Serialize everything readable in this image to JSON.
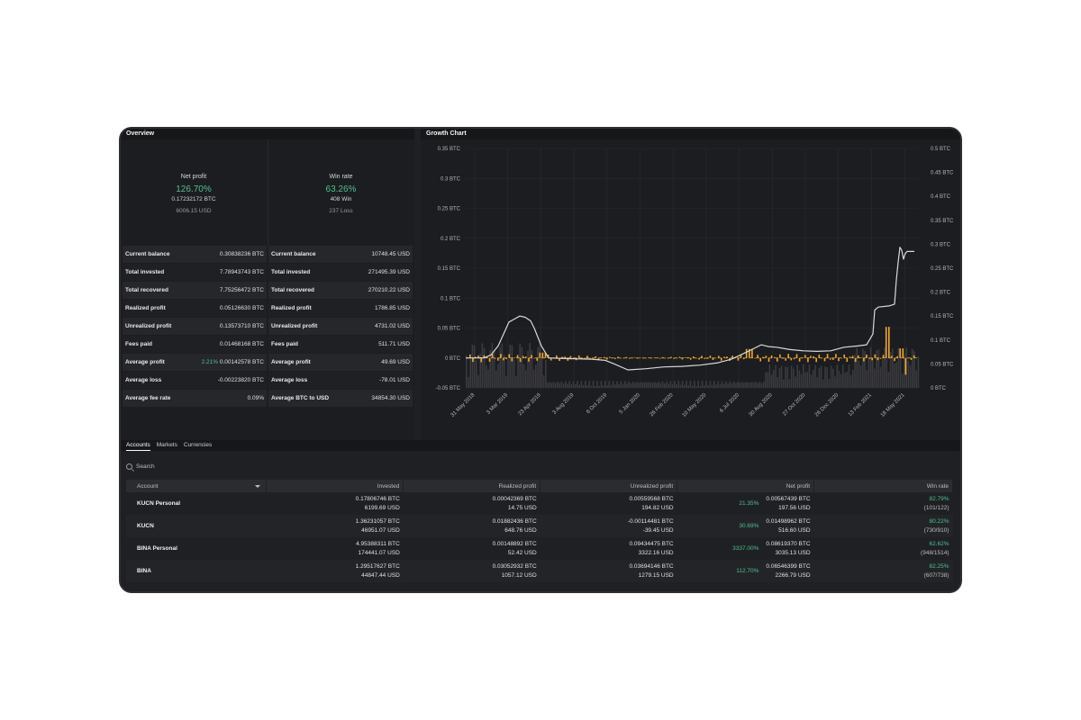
{
  "overview": {
    "title": "Overview",
    "net_profit": {
      "label": "Net profit",
      "pct": "126.70%",
      "btc": "0.17232172 BTC",
      "usd": "6006.15 USD"
    },
    "win_rate": {
      "label": "Win rate",
      "pct": "63.26%",
      "win": "408 Win",
      "loss": "237 Loss"
    },
    "btc_stats": [
      {
        "label": "Current balance",
        "value": "0.30838236 BTC"
      },
      {
        "label": "Total invested",
        "value": "7.78943743 BTC"
      },
      {
        "label": "Total recovered",
        "value": "7.75256472 BTC"
      },
      {
        "label": "Realized profit",
        "value": "0.05126630 BTC"
      },
      {
        "label": "Unrealized profit",
        "value": "0.13573710 BTC"
      },
      {
        "label": "Fees paid",
        "value": "0.01468168 BTC"
      },
      {
        "label": "Average profit",
        "pct": "2.21%",
        "value": "0.00142578 BTC"
      },
      {
        "label": "Average loss",
        "value": "-0.00223820 BTC"
      },
      {
        "label": "Average fee rate",
        "value": "0.09%"
      }
    ],
    "usd_stats": [
      {
        "label": "Current balance",
        "value": "10748.45 USD"
      },
      {
        "label": "Total invested",
        "value": "271495.39 USD"
      },
      {
        "label": "Total recovered",
        "value": "270210.22 USD"
      },
      {
        "label": "Realized profit",
        "value": "1786.85 USD"
      },
      {
        "label": "Unrealized profit",
        "value": "4731.02 USD"
      },
      {
        "label": "Fees paid",
        "value": "511.71 USD"
      },
      {
        "label": "Average profit",
        "value": "49.69 USD"
      },
      {
        "label": "Average loss",
        "value": "-78.01 USD"
      },
      {
        "label": "Average BTC to USD",
        "value": "34854.30 USD"
      }
    ]
  },
  "growth": {
    "title": "Growth Chart",
    "left_ticks": [
      "0.35 BTC",
      "0.3 BTC",
      "0.25 BTC",
      "0.2 BTC",
      "0.15 BTC",
      "0.1 BTC",
      "0.05 BTC",
      "0 BTC",
      "-0.05 BTC"
    ],
    "right_ticks": [
      "0.5 BTC",
      "0.45 BTC",
      "0.4 BTC",
      "0.35 BTC",
      "0.3 BTC",
      "0.25 BTC",
      "0.2 BTC",
      "0.15 BTC",
      "0.1 BTC",
      "0.05 BTC",
      "0 BTC"
    ],
    "x_ticks": [
      "31 May 2018",
      "3 Mar 2019",
      "23 Apr 2019",
      "3 Aug 2019",
      "6 Oct 2019",
      "5 Jan 2020",
      "26 Feb 2020",
      "10 May 2020",
      "6 Jul 2020",
      "30 Aug 2020",
      "27 Oct 2020",
      "26 Dec 2020",
      "13 Feb 2021",
      "18 May 2021"
    ],
    "colors": {
      "line": "#d9d9d9",
      "bars": "#f0a830",
      "volume": "#3a3b3f",
      "grid": "#2a2b2f"
    }
  },
  "tabs": [
    "Accounts",
    "Markets",
    "Currencies"
  ],
  "search": {
    "placeholder": "Search"
  },
  "table": {
    "headers": [
      "Account",
      "Invested",
      "Realized profit",
      "Unrealized profit",
      "Net profit",
      "Win rate"
    ],
    "rows": [
      {
        "account": "KUCN Personal",
        "inv_btc": "0.17806746 BTC",
        "inv_usd": "6199.69 USD",
        "rp_btc": "0.00042369 BTC",
        "rp_usd": "14.75 USD",
        "up_btc": "0.00559568 BTC",
        "up_usd": "194.82 USD",
        "np_pct": "21.35%",
        "np_btc": "0.00567439 BTC",
        "np_usd": "197.56 USD",
        "wr_pct": "82.79%",
        "wr_ratio": "(101/122)"
      },
      {
        "account": "KUCN",
        "inv_btc": "1.36231057 BTC",
        "inv_usd": "46951.07 USD",
        "rp_btc": "0.01882436 BTC",
        "rp_usd": "648.76 USD",
        "up_btc": "-0.00114481 BTC",
        "up_usd": "-39.45 USD",
        "np_pct": "30.69%",
        "np_btc": "0.01498962 BTC",
        "np_usd": "516.60 USD",
        "wr_pct": "80.22%",
        "wr_ratio": "(730/910)"
      },
      {
        "account": "BINA Personal",
        "inv_btc": "4.95388311 BTC",
        "inv_usd": "174441.07 USD",
        "rp_btc": "0.00148892 BTC",
        "rp_usd": "52.42 USD",
        "up_btc": "0.09434475 BTC",
        "up_usd": "3322.16 USD",
        "np_pct": "3337.00%",
        "np_btc": "0.08619370 BTC",
        "np_usd": "3035.13 USD",
        "wr_pct": "62.62%",
        "wr_ratio": "(948/1514)"
      },
      {
        "account": "BINA",
        "inv_btc": "1.29517627 BTC",
        "inv_usd": "44847.44 USD",
        "rp_btc": "0.03052932 BTC",
        "rp_usd": "1057.12 USD",
        "up_btc": "0.03694146 BTC",
        "up_usd": "1279.15 USD",
        "np_pct": "112.70%",
        "np_btc": "0.06546399 BTC",
        "np_usd": "2266.79 USD",
        "wr_pct": "82.25%",
        "wr_ratio": "(607/738)"
      }
    ]
  }
}
